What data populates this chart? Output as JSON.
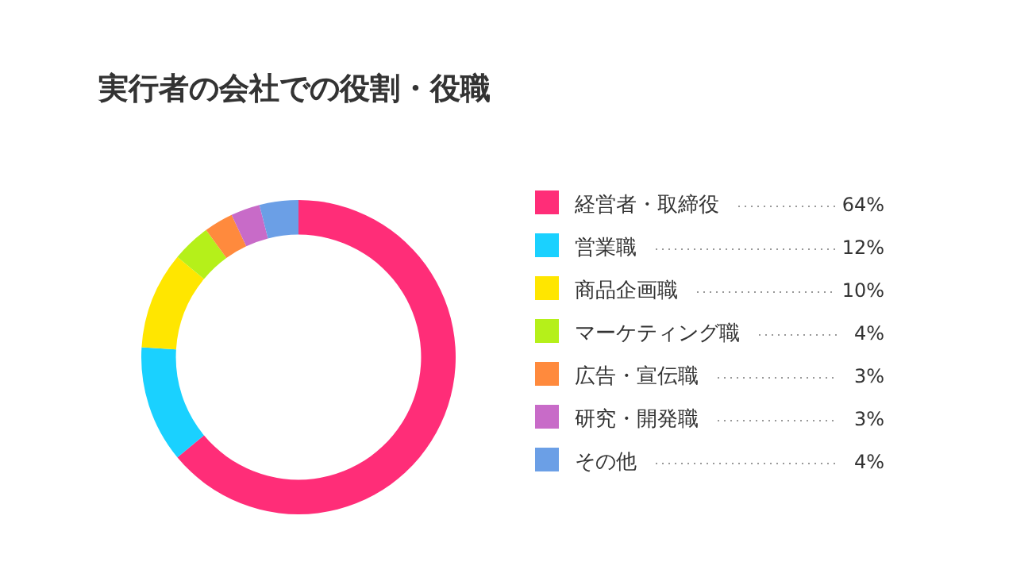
{
  "chart_data": {
    "type": "donut",
    "title": "実行者の会社での役割・役職",
    "categories": [
      "経営者・取締役",
      "営業職",
      "商品企画職",
      "マーケティング職",
      "広告・宣伝職",
      "研究・開発職",
      "その他"
    ],
    "values": [
      64,
      12,
      10,
      4,
      3,
      3,
      4
    ],
    "value_labels": [
      "64%",
      "12%",
      "10%",
      "4%",
      "3%",
      "3%",
      "4%"
    ],
    "colors": [
      "#ff2d78",
      "#1ad1ff",
      "#ffe600",
      "#b5f01a",
      "#ff8a3d",
      "#c86bc8",
      "#6b9fe6"
    ],
    "legend": "right"
  }
}
